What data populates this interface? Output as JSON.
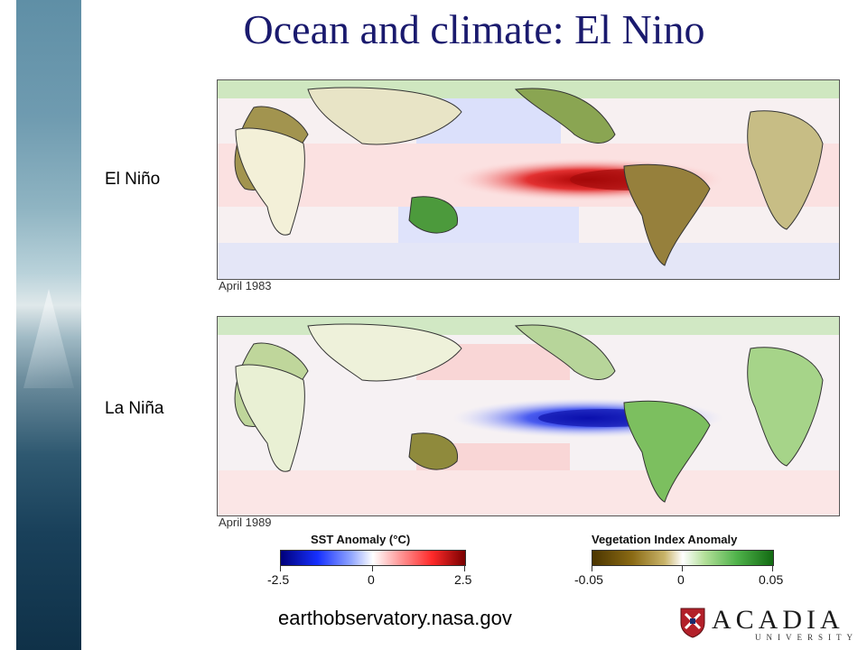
{
  "slide": {
    "title": "Ocean and climate: El Nino",
    "source": "earthobservatory.nasa.gov"
  },
  "maps": [
    {
      "label": "El Niño",
      "date": "April 1983",
      "sst_pattern": "warm-equatorial-pacific"
    },
    {
      "label": "La Niña",
      "date": "April 1989",
      "sst_pattern": "cool-equatorial-pacific"
    }
  ],
  "legends": {
    "sst": {
      "title": "SST Anomaly (°C)",
      "ticks": [
        "-2.5",
        "0",
        "2.5"
      ],
      "colors": [
        "#00007a",
        "#ffffff",
        "#7a0000"
      ]
    },
    "vegetation": {
      "title": "Vegetation Index Anomaly",
      "ticks": [
        "-0.05",
        "0",
        "0.05"
      ],
      "colors": [
        "#4b3500",
        "#ffffff",
        "#126a12"
      ]
    }
  },
  "logo": {
    "word": "ACADIA",
    "sub": "UNIVERSITY",
    "icon": "shield-icon"
  }
}
